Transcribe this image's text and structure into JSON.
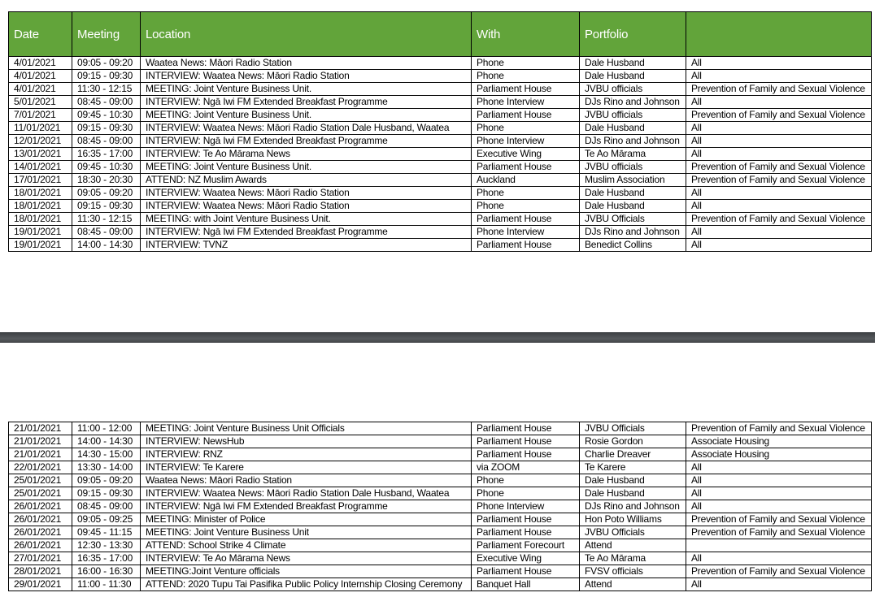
{
  "headers": [
    "Date",
    "Meeting",
    "Location",
    "With",
    "Portfolio",
    ""
  ],
  "page1_rows": [
    [
      "4/01/2021",
      "09:05 - 09:20",
      "Waatea News: Māori Radio Station",
      "Phone",
      "Dale Husband",
      "All"
    ],
    [
      "4/01/2021",
      "09:15 - 09:30",
      "INTERVIEW: Waatea News: Māori Radio Station",
      "Phone",
      "Dale Husband",
      "All"
    ],
    [
      "4/01/2021",
      "11:30 - 12:15",
      "MEETING: Joint Venture Business Unit.",
      "Parliament House",
      "JVBU officials",
      "Prevention of Family and Sexual Violence"
    ],
    [
      "5/01/2021",
      "08:45 - 09:00",
      "INTERVIEW: Ngā Iwi FM Extended Breakfast Programme",
      "Phone Interview",
      "DJs Rino and Johnson",
      "All"
    ],
    [
      "7/01/2021",
      "09:45 - 10:30",
      "MEETING: Joint Venture Business Unit.",
      "Parliament House",
      "JVBU officials",
      "Prevention of Family and Sexual Violence"
    ],
    [
      "11/01/2021",
      "09:15 - 09:30",
      "INTERVIEW: Waatea News: Māori Radio Station Dale Husband, Waatea",
      "Phone",
      "Dale Husband",
      "All"
    ],
    [
      "12/01/2021",
      "08:45 - 09:00",
      "INTERVIEW: Ngā Iwi FM Extended Breakfast Programme",
      "Phone Interview",
      "DJs Rino and Johnson",
      "All"
    ],
    [
      "13/01/2021",
      "16:35 - 17:00",
      "INTERVIEW: Te Ao Mārama News",
      "Executive Wing",
      "Te Ao Mārama",
      "All"
    ],
    [
      "14/01/2021",
      "09:45 - 10:30",
      "MEETING: Joint Venture Business Unit.",
      "Parliament House",
      "JVBU officials",
      "Prevention of Family and Sexual Violence"
    ],
    [
      "17/01/2021",
      "18:30 - 20:30",
      "ATTEND: NZ Muslim Awards",
      "Auckland",
      "Muslim Association",
      "Prevention of Family and Sexual Violence"
    ],
    [
      "18/01/2021",
      "09:05 - 09:20",
      "INTERVIEW: Waatea News: Māori Radio Station",
      "Phone",
      "Dale Husband",
      "All"
    ],
    [
      "18/01/2021",
      "09:15 - 09:30",
      "INTERVIEW: Waatea News: Māori Radio Station",
      "Phone",
      "Dale Husband",
      "All"
    ],
    [
      "18/01/2021",
      "11:30 - 12:15",
      "MEETING: with Joint Venture Business Unit.",
      "Parliament House",
      "JVBU Officials",
      "Prevention of Family and Sexual Violence"
    ],
    [
      "19/01/2021",
      "08:45 - 09:00",
      "INTERVIEW: Ngā Iwi FM Extended Breakfast Programme",
      "Phone Interview",
      "DJs Rino and Johnson",
      "All"
    ],
    [
      "19/01/2021",
      "14:00 - 14:30",
      "INTERVIEW: TVNZ",
      "Parliament House",
      "Benedict Collins",
      "All"
    ]
  ],
  "page2_rows": [
    [
      "21/01/2021",
      "11:00 - 12:00",
      "MEETING: Joint Venture Business Unit Officials",
      "Parliament House",
      "JVBU Officials",
      "Prevention of Family and Sexual Violence"
    ],
    [
      "21/01/2021",
      "14:00 - 14:30",
      "INTERVIEW: NewsHub",
      "Parliament House",
      "Rosie Gordon",
      "Associate Housing"
    ],
    [
      "21/01/2021",
      "14:30 - 15:00",
      "INTERVIEW: RNZ",
      "Parliament House",
      "Charlie Dreaver",
      "Associate Housing"
    ],
    [
      "22/01/2021",
      "13:30 - 14:00",
      "INTERVIEW: Te Karere",
      "via ZOOM",
      "Te Karere",
      "All"
    ],
    [
      "25/01/2021",
      "09:05 - 09:20",
      "Waatea News: Māori Radio Station",
      "Phone",
      "Dale Husband",
      "All"
    ],
    [
      "25/01/2021",
      "09:15 - 09:30",
      "INTERVIEW: Waatea News: Māori Radio Station Dale Husband, Waatea",
      "Phone",
      "Dale Husband",
      "All"
    ],
    [
      "26/01/2021",
      "08:45 - 09:00",
      "INTERVIEW: Ngā Iwi FM Extended Breakfast Programme",
      "Phone Interview",
      "DJs Rino and Johnson",
      "All"
    ],
    [
      "26/01/2021",
      "09:05 - 09:25",
      "MEETING: Minister of Police",
      "Parliament House",
      "Hon Poto Williams",
      "Prevention of Family and Sexual Violence"
    ],
    [
      "26/01/2021",
      "09:45 - 11:15",
      "MEETING: Joint Venture Business Unit",
      "Parliament House",
      "JVBU Officials",
      "Prevention of Family and Sexual Violence"
    ],
    [
      "26/01/2021",
      "12:30 - 13:30",
      "ATTEND: School Strike 4 Climate",
      "Parliament Forecourt",
      "Attend",
      ""
    ],
    [
      "27/01/2021",
      "16:35 - 17:00",
      "INTERVIEW: Te Ao Mārama News",
      "Executive Wing",
      "Te Ao Mārama",
      "All"
    ],
    [
      "28/01/2021",
      "16:00 - 16:30",
      "MEETING:Joint Venture officials",
      "Parliament House",
      "FVSV officials",
      "Prevention of Family and Sexual Violence"
    ],
    [
      "29/01/2021",
      "11:00 - 11:30",
      "ATTEND: 2020 Tupu Tai Pasifika Public Policy Internship Closing Ceremony",
      "Banquet Hall",
      "Attend",
      "All"
    ]
  ],
  "colors": {
    "header_bg": "#62a43a",
    "header_text": "#ffffff",
    "page_separator": "#45484b"
  }
}
